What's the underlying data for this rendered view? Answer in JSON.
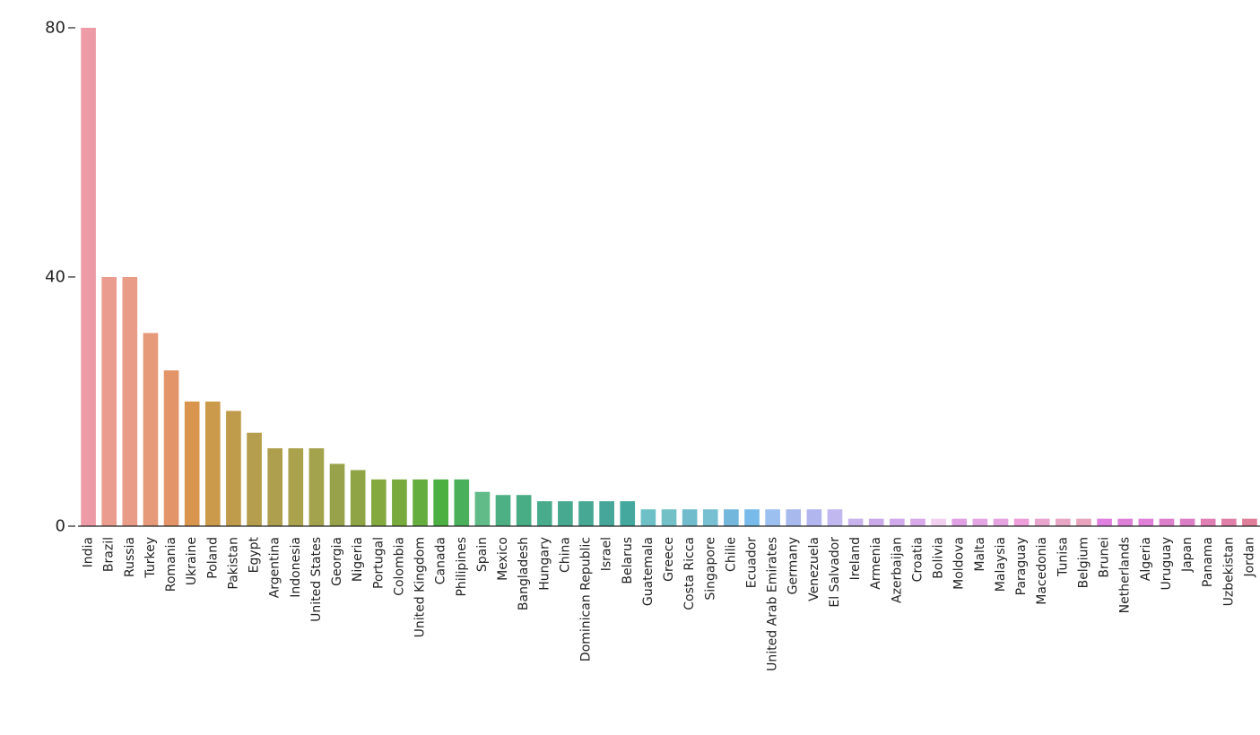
{
  "chart_data": {
    "type": "bar",
    "title": "",
    "xlabel": "",
    "ylabel": "",
    "ylim": [
      0,
      80
    ],
    "yticks": [
      0,
      40,
      80
    ],
    "grid": false,
    "categories": [
      "India",
      "Brazil",
      "Russia",
      "Turkey",
      "Romania",
      "Ukraine",
      "Poland",
      "Pakistan",
      "Egypt",
      "Argentina",
      "Indonesia",
      "United States",
      "Georgia",
      "Nigeria",
      "Portugal",
      "Colombia",
      "United Kingdom",
      "Canada",
      "Philipines",
      "Spain",
      "Mexico",
      "Bangladesh",
      "Hungary",
      "China",
      "Dominican Republic",
      "Israel",
      "Belarus",
      "Guatemala",
      "Greece",
      "Costa Ricca",
      "Singapore",
      "Chilie",
      "Ecuador",
      "United Arab Emirates",
      "Germany",
      "Venezuela",
      "El Salvador",
      "Ireland",
      "Armenia",
      "Azerbaijan",
      "Croatia",
      "Bolivia",
      "Moldova",
      "Malta",
      "Malaysia",
      "Paraguay",
      "Macedonia",
      "Tunisa",
      "Belgium",
      "Brunei",
      "Netherlands",
      "Algeria",
      "Uruguay",
      "Japan",
      "Panama",
      "Uzbekistan",
      "Jordan"
    ],
    "values": [
      80,
      40,
      40,
      31,
      25,
      20,
      20,
      18.5,
      15,
      12.5,
      12.5,
      12.5,
      10,
      9,
      7.5,
      7.5,
      7.5,
      7.5,
      7.5,
      5.5,
      5,
      5,
      4,
      4,
      4,
      4,
      4,
      2.7,
      2.7,
      2.7,
      2.7,
      2.7,
      2.7,
      2.7,
      2.7,
      2.7,
      2.7,
      1.2,
      1.2,
      1.2,
      1.2,
      1.2,
      1.2,
      1.2,
      1.2,
      1.2,
      1.2,
      1.2,
      1.2,
      1.2,
      1.2,
      1.2,
      1.2,
      1.2,
      1.2,
      1.2,
      1.2
    ],
    "colors": [
      "#ed9ba6",
      "#ea9d8f",
      "#e99c88",
      "#e69a79",
      "#e39569",
      "#d9954d",
      "#cc9a4b",
      "#bf9b4c",
      "#b59e4d",
      "#ad9f4e",
      "#aaa24d",
      "#a3a24d",
      "#98a24b",
      "#8fa445",
      "#84a93f",
      "#78aa3e",
      "#65ad3e",
      "#4caf42",
      "#4ab05a",
      "#60bb88",
      "#4cb084",
      "#48ac84",
      "#48ab8c",
      "#47a98f",
      "#47a894",
      "#46a699",
      "#44a89f",
      "#6ec0c7",
      "#73c0c7",
      "#70bbcc",
      "#77c0d2",
      "#73b8dc",
      "#78baea",
      "#9cc0f0",
      "#a8b9ee",
      "#b2b6ee",
      "#c0b8ee",
      "#c8b3ec",
      "#cbaae9",
      "#d0aaea",
      "#d8aae9",
      "#f2d0f0",
      "#e0a0e4",
      "#e3a6e2",
      "#e4a4e0",
      "#ee9ed8",
      "#e8a6cf",
      "#e8a6c5",
      "#e8a4bd",
      "#e080e0",
      "#dd80d8",
      "#e080d8",
      "#dd80cb",
      "#dc7ec5",
      "#e07fb4",
      "#e07fa8",
      "#e07f9a"
    ]
  }
}
